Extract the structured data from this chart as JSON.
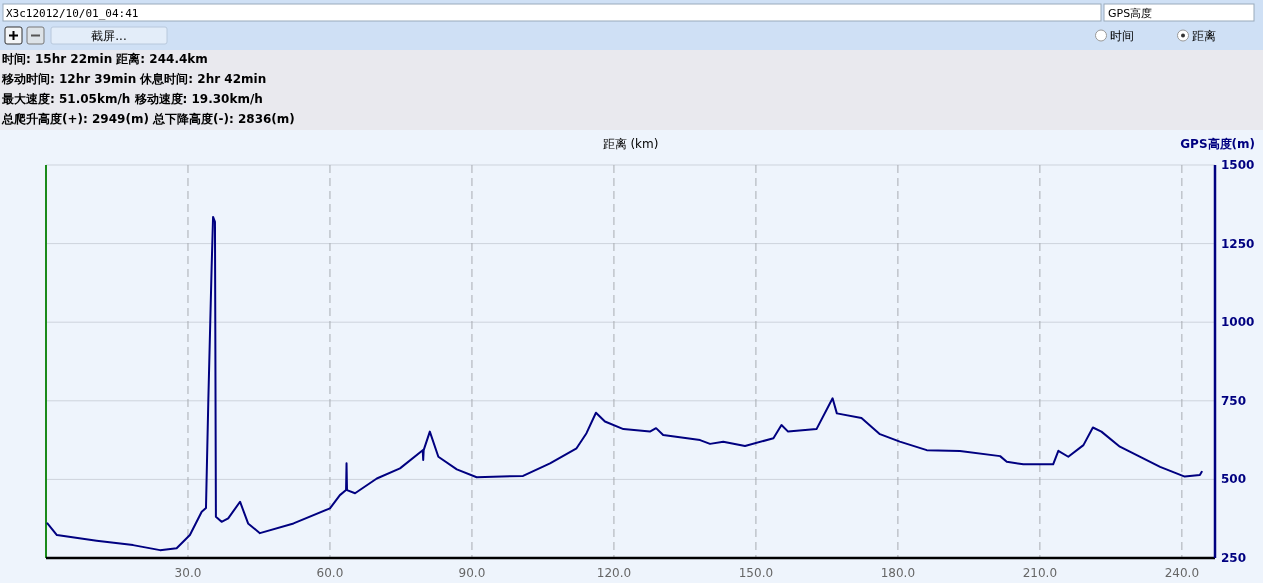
{
  "chart_data": {
    "type": "line",
    "xlabel": "距离 (km)",
    "ylabel": "GPS高度(m)",
    "annotations": [
      "X3c12012/10/01_04:41",
      "GPS高度",
      "截屏...",
      "时间",
      "距离",
      "时间: 15hr 22min  距离: 244.4km",
      "移动时间: 12hr 39min  休息时间: 2hr 42min",
      "最大速度: 51.05km/h  移动速度: 19.30km/h",
      "总爬升高度(+): 2949(m)  总下降高度(-): 2836(m)"
    ],
    "xlim": [
      0,
      247
    ],
    "ylim": [
      250,
      1500
    ],
    "xticks": [
      {
        "value": 30,
        "label": "30.0"
      },
      {
        "value": 60,
        "label": "60.0"
      },
      {
        "value": 90,
        "label": "90.0"
      },
      {
        "value": 120,
        "label": "120.0"
      },
      {
        "value": 150,
        "label": "150.0"
      },
      {
        "value": 180,
        "label": "180.0"
      },
      {
        "value": 210,
        "label": "210.0"
      },
      {
        "value": 240,
        "label": "240.0"
      }
    ],
    "yticks": [
      250,
      500,
      750,
      1000,
      1250,
      1500
    ],
    "grid": true,
    "marker": "none",
    "line_style": "solid",
    "series": [
      {
        "color": "#000080",
        "x": [
          0.3,
          2.3,
          10.7,
          18.4,
          24.1,
          27.6,
          30.4,
          32.9,
          33.8,
          34.3,
          35.0,
          35.3,
          35.7,
          35.9,
          37.1,
          38.5,
          41.0,
          42.7,
          45.2,
          52.3,
          60.0,
          62.1,
          63.4,
          63.5,
          63.6,
          65.3,
          69.9,
          74.8,
          79.6,
          79.7,
          79.8,
          81.1,
          82.9,
          86.8,
          91.0,
          100.8,
          106.5,
          112.1,
          114.2,
          116.2,
          118.1,
          122.0,
          127.6,
          128.9,
          130.4,
          138.2,
          140.3,
          143.1,
          147.7,
          153.7,
          155.4,
          156.8,
          162.8,
          166.2,
          167.1,
          172.3,
          176.2,
          180.4,
          186.1,
          193.1,
          201.6,
          203.0,
          206.5,
          212.8,
          213.9,
          216.0,
          219.2,
          221.2,
          223.0,
          226.9,
          235.4,
          240.6,
          243.8,
          244.2
        ],
        "values": [
          360,
          323,
          305,
          291,
          275,
          281,
          323,
          397,
          409,
          752,
          1177,
          1335,
          1319,
          381,
          365,
          376,
          429,
          360,
          329,
          360,
          408,
          450,
          466,
          551,
          466,
          456,
          503,
          535,
          593,
          562,
          593,
          652,
          572,
          532,
          507,
          511,
          551,
          599,
          647,
          712,
          684,
          660,
          652,
          663,
          641,
          625,
          613,
          620,
          606,
          631,
          673,
          652,
          660,
          758,
          710,
          695,
          644,
          620,
          593,
          590,
          574,
          556,
          548,
          548,
          591,
          572,
          609,
          665,
          652,
          604,
          540,
          509,
          514,
          524
        ]
      }
    ]
  }
}
